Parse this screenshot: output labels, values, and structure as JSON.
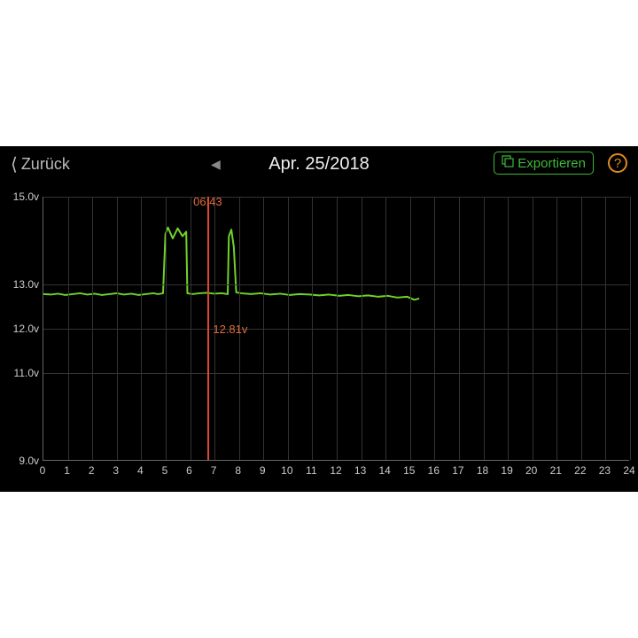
{
  "header": {
    "back_label": "Zurück",
    "title": "Apr. 25/2018",
    "export_label": "Exportieren",
    "help_label": "?"
  },
  "chart": {
    "type": "line",
    "background_color": "#000000",
    "grid_color": "#333333",
    "axis_color": "#666666",
    "series_color": "#6fd22a",
    "cursor_color": "#d84a2b",
    "cursor_text_color": "#e06a3b",
    "label_color": "#cccccc",
    "label_fontsize": 12,
    "line_width": 2,
    "xlim": [
      0,
      24
    ],
    "ylim": [
      9.0,
      15.0
    ],
    "xticks": [
      0,
      1,
      2,
      3,
      4,
      5,
      6,
      7,
      8,
      9,
      10,
      11,
      12,
      13,
      14,
      15,
      16,
      17,
      18,
      19,
      20,
      21,
      22,
      23,
      24
    ],
    "yticks": [
      9.0,
      11.0,
      12.0,
      13.0,
      15.0
    ],
    "ytick_labels": [
      "9.0v",
      "11.0v",
      "12.0v",
      "13.0v",
      "15.0v"
    ],
    "cursor_x": 6.72,
    "cursor_time_label": "06:43",
    "cursor_value_label": "12.81v",
    "cursor_value_y": 12.0,
    "series": [
      {
        "x": 0.0,
        "y": 12.78
      },
      {
        "x": 0.3,
        "y": 12.77
      },
      {
        "x": 0.6,
        "y": 12.79
      },
      {
        "x": 0.9,
        "y": 12.76
      },
      {
        "x": 1.2,
        "y": 12.78
      },
      {
        "x": 1.5,
        "y": 12.8
      },
      {
        "x": 1.8,
        "y": 12.77
      },
      {
        "x": 2.1,
        "y": 12.79
      },
      {
        "x": 2.4,
        "y": 12.76
      },
      {
        "x": 2.7,
        "y": 12.78
      },
      {
        "x": 3.0,
        "y": 12.8
      },
      {
        "x": 3.3,
        "y": 12.77
      },
      {
        "x": 3.6,
        "y": 12.79
      },
      {
        "x": 3.9,
        "y": 12.76
      },
      {
        "x": 4.2,
        "y": 12.78
      },
      {
        "x": 4.5,
        "y": 12.8
      },
      {
        "x": 4.7,
        "y": 12.78
      },
      {
        "x": 4.9,
        "y": 12.8
      },
      {
        "x": 5.0,
        "y": 14.15
      },
      {
        "x": 5.1,
        "y": 14.3
      },
      {
        "x": 5.3,
        "y": 14.05
      },
      {
        "x": 5.5,
        "y": 14.28
      },
      {
        "x": 5.7,
        "y": 14.1
      },
      {
        "x": 5.85,
        "y": 14.2
      },
      {
        "x": 5.9,
        "y": 12.8
      },
      {
        "x": 6.1,
        "y": 12.78
      },
      {
        "x": 6.4,
        "y": 12.8
      },
      {
        "x": 6.7,
        "y": 12.81
      },
      {
        "x": 7.0,
        "y": 12.79
      },
      {
        "x": 7.3,
        "y": 12.8
      },
      {
        "x": 7.55,
        "y": 12.78
      },
      {
        "x": 7.6,
        "y": 14.1
      },
      {
        "x": 7.7,
        "y": 14.25
      },
      {
        "x": 7.8,
        "y": 13.85
      },
      {
        "x": 7.9,
        "y": 12.82
      },
      {
        "x": 8.1,
        "y": 12.8
      },
      {
        "x": 8.5,
        "y": 12.78
      },
      {
        "x": 8.9,
        "y": 12.8
      },
      {
        "x": 9.3,
        "y": 12.77
      },
      {
        "x": 9.7,
        "y": 12.79
      },
      {
        "x": 10.1,
        "y": 12.76
      },
      {
        "x": 10.5,
        "y": 12.78
      },
      {
        "x": 10.9,
        "y": 12.77
      },
      {
        "x": 11.3,
        "y": 12.75
      },
      {
        "x": 11.7,
        "y": 12.77
      },
      {
        "x": 12.1,
        "y": 12.74
      },
      {
        "x": 12.5,
        "y": 12.76
      },
      {
        "x": 12.9,
        "y": 12.73
      },
      {
        "x": 13.3,
        "y": 12.75
      },
      {
        "x": 13.7,
        "y": 12.72
      },
      {
        "x": 14.1,
        "y": 12.74
      },
      {
        "x": 14.5,
        "y": 12.7
      },
      {
        "x": 14.9,
        "y": 12.72
      },
      {
        "x": 15.2,
        "y": 12.65
      },
      {
        "x": 15.4,
        "y": 12.68
      }
    ]
  },
  "watermark": ""
}
